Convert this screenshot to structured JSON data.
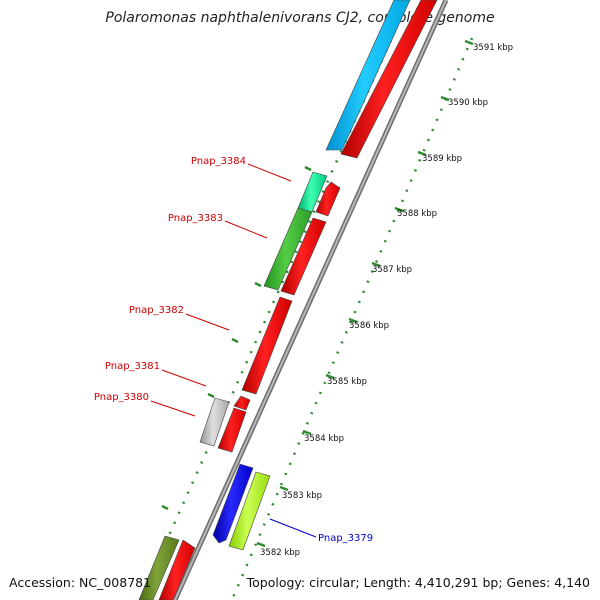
{
  "title": "Polaromonas naphthalenivorans CJ2, complete genome",
  "footer": {
    "accession": "Accession: NC_008781",
    "summary": "Topology: circular; Length: 4,410,291 bp; Genes: 4,140"
  },
  "colors": {
    "backbone": "#8a8a8a",
    "tick": "#2e8b2e",
    "label_red": "#cc0000",
    "label_blue": "#0000cc"
  },
  "ticks": [
    {
      "label": "3591 kbp"
    },
    {
      "label": "3590 kbp"
    },
    {
      "label": "3589 kbp"
    },
    {
      "label": "3588 kbp"
    },
    {
      "label": "3587 kbp"
    },
    {
      "label": "3586 kbp"
    },
    {
      "label": "3585 kbp"
    },
    {
      "label": "3584 kbp"
    },
    {
      "label": "3583 kbp"
    },
    {
      "label": "3582 kbp"
    }
  ],
  "gene_labels": [
    {
      "name": "Pnap_3384",
      "color": "#cc0000"
    },
    {
      "name": "Pnap_3383",
      "color": "#cc0000"
    },
    {
      "name": "Pnap_3382",
      "color": "#cc0000"
    },
    {
      "name": "Pnap_3381",
      "color": "#cc0000"
    },
    {
      "name": "Pnap_3380",
      "color": "#cc0000"
    },
    {
      "name": "Pnap_3379",
      "color": "#0000cc"
    }
  ]
}
